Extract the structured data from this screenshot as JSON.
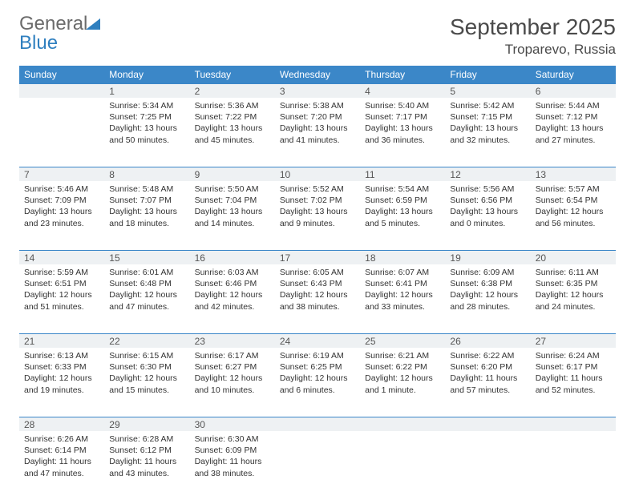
{
  "logo": {
    "word1": "General",
    "word2": "Blue"
  },
  "title": "September 2025",
  "location": "Troparevo, Russia",
  "colors": {
    "header_bg": "#3b87c8",
    "header_text": "#ffffff",
    "daynum_bg": "#eef1f3",
    "border": "#3b87c8",
    "body_text": "#333333",
    "logo_gray": "#6b6b6b",
    "logo_blue": "#2f7fbf"
  },
  "weekdays": [
    "Sunday",
    "Monday",
    "Tuesday",
    "Wednesday",
    "Thursday",
    "Friday",
    "Saturday"
  ],
  "weeks": [
    [
      {
        "n": "",
        "sr": "",
        "ss": "",
        "dl": ""
      },
      {
        "n": "1",
        "sr": "Sunrise: 5:34 AM",
        "ss": "Sunset: 7:25 PM",
        "dl": "Daylight: 13 hours and 50 minutes."
      },
      {
        "n": "2",
        "sr": "Sunrise: 5:36 AM",
        "ss": "Sunset: 7:22 PM",
        "dl": "Daylight: 13 hours and 45 minutes."
      },
      {
        "n": "3",
        "sr": "Sunrise: 5:38 AM",
        "ss": "Sunset: 7:20 PM",
        "dl": "Daylight: 13 hours and 41 minutes."
      },
      {
        "n": "4",
        "sr": "Sunrise: 5:40 AM",
        "ss": "Sunset: 7:17 PM",
        "dl": "Daylight: 13 hours and 36 minutes."
      },
      {
        "n": "5",
        "sr": "Sunrise: 5:42 AM",
        "ss": "Sunset: 7:15 PM",
        "dl": "Daylight: 13 hours and 32 minutes."
      },
      {
        "n": "6",
        "sr": "Sunrise: 5:44 AM",
        "ss": "Sunset: 7:12 PM",
        "dl": "Daylight: 13 hours and 27 minutes."
      }
    ],
    [
      {
        "n": "7",
        "sr": "Sunrise: 5:46 AM",
        "ss": "Sunset: 7:09 PM",
        "dl": "Daylight: 13 hours and 23 minutes."
      },
      {
        "n": "8",
        "sr": "Sunrise: 5:48 AM",
        "ss": "Sunset: 7:07 PM",
        "dl": "Daylight: 13 hours and 18 minutes."
      },
      {
        "n": "9",
        "sr": "Sunrise: 5:50 AM",
        "ss": "Sunset: 7:04 PM",
        "dl": "Daylight: 13 hours and 14 minutes."
      },
      {
        "n": "10",
        "sr": "Sunrise: 5:52 AM",
        "ss": "Sunset: 7:02 PM",
        "dl": "Daylight: 13 hours and 9 minutes."
      },
      {
        "n": "11",
        "sr": "Sunrise: 5:54 AM",
        "ss": "Sunset: 6:59 PM",
        "dl": "Daylight: 13 hours and 5 minutes."
      },
      {
        "n": "12",
        "sr": "Sunrise: 5:56 AM",
        "ss": "Sunset: 6:56 PM",
        "dl": "Daylight: 13 hours and 0 minutes."
      },
      {
        "n": "13",
        "sr": "Sunrise: 5:57 AM",
        "ss": "Sunset: 6:54 PM",
        "dl": "Daylight: 12 hours and 56 minutes."
      }
    ],
    [
      {
        "n": "14",
        "sr": "Sunrise: 5:59 AM",
        "ss": "Sunset: 6:51 PM",
        "dl": "Daylight: 12 hours and 51 minutes."
      },
      {
        "n": "15",
        "sr": "Sunrise: 6:01 AM",
        "ss": "Sunset: 6:48 PM",
        "dl": "Daylight: 12 hours and 47 minutes."
      },
      {
        "n": "16",
        "sr": "Sunrise: 6:03 AM",
        "ss": "Sunset: 6:46 PM",
        "dl": "Daylight: 12 hours and 42 minutes."
      },
      {
        "n": "17",
        "sr": "Sunrise: 6:05 AM",
        "ss": "Sunset: 6:43 PM",
        "dl": "Daylight: 12 hours and 38 minutes."
      },
      {
        "n": "18",
        "sr": "Sunrise: 6:07 AM",
        "ss": "Sunset: 6:41 PM",
        "dl": "Daylight: 12 hours and 33 minutes."
      },
      {
        "n": "19",
        "sr": "Sunrise: 6:09 AM",
        "ss": "Sunset: 6:38 PM",
        "dl": "Daylight: 12 hours and 28 minutes."
      },
      {
        "n": "20",
        "sr": "Sunrise: 6:11 AM",
        "ss": "Sunset: 6:35 PM",
        "dl": "Daylight: 12 hours and 24 minutes."
      }
    ],
    [
      {
        "n": "21",
        "sr": "Sunrise: 6:13 AM",
        "ss": "Sunset: 6:33 PM",
        "dl": "Daylight: 12 hours and 19 minutes."
      },
      {
        "n": "22",
        "sr": "Sunrise: 6:15 AM",
        "ss": "Sunset: 6:30 PM",
        "dl": "Daylight: 12 hours and 15 minutes."
      },
      {
        "n": "23",
        "sr": "Sunrise: 6:17 AM",
        "ss": "Sunset: 6:27 PM",
        "dl": "Daylight: 12 hours and 10 minutes."
      },
      {
        "n": "24",
        "sr": "Sunrise: 6:19 AM",
        "ss": "Sunset: 6:25 PM",
        "dl": "Daylight: 12 hours and 6 minutes."
      },
      {
        "n": "25",
        "sr": "Sunrise: 6:21 AM",
        "ss": "Sunset: 6:22 PM",
        "dl": "Daylight: 12 hours and 1 minute."
      },
      {
        "n": "26",
        "sr": "Sunrise: 6:22 AM",
        "ss": "Sunset: 6:20 PM",
        "dl": "Daylight: 11 hours and 57 minutes."
      },
      {
        "n": "27",
        "sr": "Sunrise: 6:24 AM",
        "ss": "Sunset: 6:17 PM",
        "dl": "Daylight: 11 hours and 52 minutes."
      }
    ],
    [
      {
        "n": "28",
        "sr": "Sunrise: 6:26 AM",
        "ss": "Sunset: 6:14 PM",
        "dl": "Daylight: 11 hours and 47 minutes."
      },
      {
        "n": "29",
        "sr": "Sunrise: 6:28 AM",
        "ss": "Sunset: 6:12 PM",
        "dl": "Daylight: 11 hours and 43 minutes."
      },
      {
        "n": "30",
        "sr": "Sunrise: 6:30 AM",
        "ss": "Sunset: 6:09 PM",
        "dl": "Daylight: 11 hours and 38 minutes."
      },
      {
        "n": "",
        "sr": "",
        "ss": "",
        "dl": ""
      },
      {
        "n": "",
        "sr": "",
        "ss": "",
        "dl": ""
      },
      {
        "n": "",
        "sr": "",
        "ss": "",
        "dl": ""
      },
      {
        "n": "",
        "sr": "",
        "ss": "",
        "dl": ""
      }
    ]
  ]
}
